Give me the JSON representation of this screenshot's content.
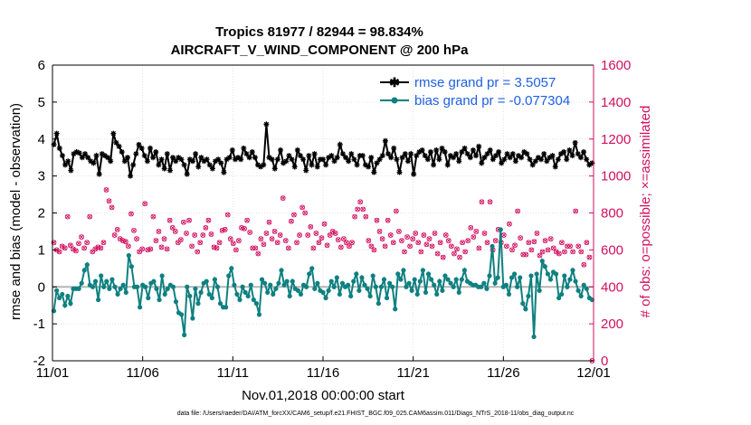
{
  "chart_data": {
    "type": "line",
    "title": "Tropics 81977 / 82944 = 98.834%",
    "subtitle": "AIRCRAFT_V_WIND_COMPONENT @ 200 hPa",
    "xlabel": "Nov.01,2018 00:00:00 start",
    "ylabel": "rmse and bias (model - observation)",
    "y2label": "# of obs: o=possible; ×=assimilated",
    "footnote": "data file: /Users/raeder/DAI/ATM_forcXX/CAM6_setup/f.e21.FHIST_BGC.f09_025.CAM6assim.011/Diags_NTrS_2018-11/obs_diag_output.nc",
    "x_ticks": [
      "11/01",
      "11/06",
      "11/11",
      "11/16",
      "11/21",
      "11/26",
      "12/01"
    ],
    "xlim": [
      0,
      30
    ],
    "ylim": [
      -2,
      6
    ],
    "y_ticks": [
      "-2",
      "-1",
      "0",
      "1",
      "2",
      "3",
      "4",
      "5",
      "6"
    ],
    "y2lim": [
      0,
      1600
    ],
    "y2_ticks": [
      "0",
      "200",
      "400",
      "600",
      "800",
      "1000",
      "1200",
      "1400",
      "1600"
    ],
    "grid": true,
    "legend_position": "top-right",
    "series": [
      {
        "name": "rmse grand pr = 3.5057",
        "color": "#000000",
        "marker": "asterisk",
        "values": [
          3.85,
          4.15,
          3.75,
          3.55,
          3.3,
          3.4,
          3.15,
          3.6,
          3.65,
          3.62,
          3.5,
          3.6,
          3.5,
          3.4,
          3.35,
          3.55,
          3.05,
          3.6,
          3.55,
          3.5,
          3.4,
          4.15,
          3.9,
          3.8,
          3.65,
          3.4,
          3.5,
          3.0,
          3.3,
          3.6,
          3.85,
          3.75,
          3.55,
          3.4,
          3.75,
          3.5,
          3.65,
          3.3,
          3.45,
          3.2,
          3.6,
          3.15,
          3.5,
          3.4,
          3.5,
          3.45,
          3.3,
          3.05,
          3.45,
          3.4,
          3.6,
          3.25,
          3.5,
          3.4,
          3.45,
          3.3,
          3.2,
          3.4,
          3.45,
          3.35,
          3.1,
          3.45,
          3.5,
          3.7,
          3.45,
          3.5,
          3.45,
          3.75,
          3.6,
          3.5,
          3.65,
          3.5,
          3.3,
          3.25,
          3.3,
          4.4,
          3.5,
          3.45,
          3.2,
          3.45,
          3.7,
          3.35,
          3.4,
          3.55,
          3.45,
          3.25,
          3.7,
          3.55,
          3.45,
          3.15,
          3.55,
          3.3,
          3.6,
          3.25,
          3.45,
          3.45,
          3.3,
          3.5,
          3.55,
          3.4,
          3.5,
          3.85,
          3.6,
          3.5,
          3.4,
          3.6,
          3.45,
          3.3,
          3.55,
          3.55,
          3.3,
          3.25,
          3.5,
          3.1,
          3.35,
          3.45,
          3.55,
          3.95,
          3.6,
          3.5,
          3.75,
          3.45,
          3.1,
          3.5,
          3.6,
          3.4,
          3.6,
          3.05,
          3.55,
          3.65,
          3.7,
          3.55,
          3.45,
          3.65,
          3.3,
          3.7,
          3.45,
          3.75,
          3.65,
          3.3,
          3.55,
          3.5,
          3.6,
          3.4,
          3.65,
          3.75,
          3.6,
          3.5,
          3.7,
          3.55,
          3.8,
          3.35,
          3.5,
          3.6,
          3.7,
          3.45,
          3.55,
          3.65,
          3.35,
          3.45,
          3.6,
          3.5,
          3.6,
          3.4,
          3.55,
          3.5,
          3.65,
          3.6,
          3.45,
          3.3,
          3.4,
          3.5,
          3.45,
          3.6,
          3.4,
          3.5,
          3.55,
          3.25,
          3.45,
          3.6,
          3.65,
          3.45,
          3.7,
          3.55,
          3.9,
          3.6,
          3.5,
          3.65,
          3.45,
          3.3,
          3.35
        ]
      },
      {
        "name": "bias grand pr = -0.077304",
        "color": "#0f8080",
        "marker": "circle",
        "values": [
          -0.65,
          -0.1,
          -0.3,
          -0.2,
          -0.5,
          -0.25,
          -0.45,
          -0.05,
          -0.05,
          -0.05,
          0.1,
          0.45,
          0.6,
          0.05,
          0.0,
          0.15,
          -0.35,
          0.3,
          0.0,
          0.15,
          -0.05,
          0.2,
          0.0,
          -0.2,
          -0.05,
          0.05,
          -0.15,
          0.85,
          0.55,
          0.0,
          0.0,
          -0.55,
          0.05,
          0.0,
          -0.3,
          0.1,
          0.15,
          -0.05,
          -0.35,
          0.3,
          -0.2,
          -0.05,
          0.05,
          0.0,
          -0.4,
          -0.7,
          -0.75,
          -1.3,
          0.0,
          -0.25,
          -0.85,
          -0.05,
          -0.45,
          -0.15,
          0.1,
          0.15,
          -0.2,
          -0.3,
          0.2,
          0.0,
          -0.45,
          -0.55,
          -0.55,
          0.3,
          0.5,
          0.05,
          -0.2,
          -0.35,
          0.0,
          -0.15,
          -0.25,
          0.05,
          -0.35,
          -0.45,
          -0.75,
          0.2,
          0.1,
          -0.15,
          0.05,
          -0.2,
          -0.05,
          0.1,
          0.45,
          0.05,
          0.15,
          -0.25,
          0.15,
          -0.05,
          -0.1,
          -0.2,
          0.05,
          0.0,
          0.35,
          0.5,
          -0.05,
          0.1,
          -0.1,
          -0.15,
          -0.3,
          -0.1,
          0.15,
          0.0,
          0.25,
          -0.2,
          0.1,
          0.0,
          0.05,
          -0.25,
          0.15,
          0.35,
          -0.1,
          0.25,
          0.05,
          -0.05,
          -0.25,
          0.3,
          0.0,
          -0.45,
          0.0,
          0.2,
          -0.3,
          0.1,
          0.0,
          -0.6,
          0.35,
          0.2,
          0.45,
          0.0,
          0.1,
          -0.1,
          0.2,
          -0.2,
          0.15,
          0.45,
          -0.15,
          0.35,
          0.2,
          0.05,
          -0.2,
          0.15,
          -0.1,
          0.3,
          0.2,
          0.1,
          0.0,
          0.2,
          -0.15,
          0.2,
          0.45,
          0.15,
          0.1,
          0.05,
          0.05,
          0.0,
          0.0,
          0.1,
          -0.05,
          0.3,
          1.1,
          0.1,
          0.25,
          1.55,
          0.0,
          0.05,
          -0.2,
          0.25,
          0.35,
          0.0,
          0.25,
          -0.45,
          -0.6,
          -0.25,
          0.3,
          -1.35,
          0.35,
          -0.1,
          0.7,
          0.55,
          0.35,
          0.2,
          0.4,
          0.35,
          -0.3,
          -0.2,
          0.3,
          0.0,
          0.2,
          0.45,
          0.15,
          -0.1,
          -0.25,
          0.05,
          -0.05,
          -0.3,
          -0.35
        ]
      }
    ],
    "obs_counts": {
      "axis": "right",
      "color": "#d01060",
      "possible": [
        640,
        600,
        590,
        620,
        610,
        780,
        625,
        605,
        595,
        635,
        670,
        610,
        640,
        780,
        590,
        605,
        615,
        610,
        640,
        925,
        865,
        830,
        680,
        710,
        660,
        650,
        645,
        620,
        795,
        705,
        660,
        590,
        605,
        850,
        600,
        605,
        780,
        650,
        700,
        615,
        660,
        605,
        760,
        720,
        700,
        640,
        655,
        750,
        690,
        760,
        620,
        680,
        590,
        640,
        680,
        720,
        760,
        685,
        615,
        610,
        640,
        705,
        710,
        790,
        660,
        635,
        600,
        650,
        720,
        715,
        760,
        695,
        610,
        610,
        580,
        660,
        630,
        690,
        750,
        660,
        700,
        640,
        680,
        880,
        650,
        610,
        755,
        790,
        640,
        680,
        830,
        800,
        680,
        725,
        610,
        690,
        640,
        665,
        740,
        625,
        680,
        700,
        690,
        655,
        615,
        660,
        640,
        620,
        640,
        780,
        820,
        860,
        820,
        780,
        650,
        620,
        600,
        760,
        700,
        660,
        620,
        760,
        680,
        640,
        810,
        700,
        650,
        590,
        670,
        620,
        660,
        690,
        640,
        590,
        680,
        630,
        660,
        620,
        690,
        580,
        640,
        560,
        680,
        650,
        620,
        580,
        605,
        560,
        640,
        590,
        650,
        720,
        670,
        700,
        610,
        860,
        690,
        640,
        860,
        600,
        650,
        710,
        640,
        680,
        620,
        740,
        600,
        625,
        810,
        665,
        575,
        575,
        640,
        600,
        645,
        690,
        570,
        590,
        650,
        600,
        660,
        610,
        590,
        580,
        640,
        590,
        620,
        620,
        590,
        810,
        620,
        590,
        520,
        640,
        560,
        0
      ]
    }
  }
}
